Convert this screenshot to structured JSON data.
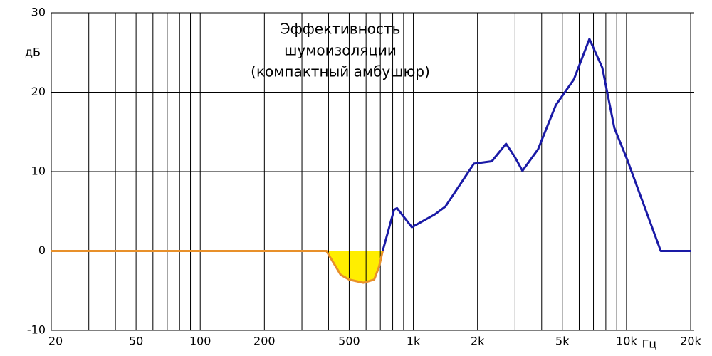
{
  "chart_data": {
    "type": "line",
    "title": [
      "Эффективность",
      "шумоизоляции",
      "(компактный амбушюр)"
    ],
    "y_label": "дБ",
    "x_label": "Гц",
    "log_x": true,
    "grid": true,
    "xlim": [
      20,
      20000
    ],
    "xticks": [
      20,
      50,
      100,
      200,
      500,
      {
        "value": 1000,
        "label": "1k"
      },
      {
        "value": 2000,
        "label": "2k"
      },
      {
        "value": 5000,
        "label": "5k"
      },
      {
        "value": 10000,
        "label": "10k"
      },
      {
        "value": 20000,
        "label": "20k"
      }
    ],
    "x_minor_grid": [
      30,
      40,
      60,
      70,
      80,
      90,
      300,
      400,
      600,
      700,
      800,
      900,
      3000,
      4000,
      6000,
      7000,
      8000,
      9000
    ],
    "ylim": [
      -10,
      30
    ],
    "yticks": [
      -10,
      0,
      10,
      20,
      30
    ],
    "series": [
      {
        "color": "#1a1aa6",
        "x": [
          718,
          812,
          838,
          984,
          1260,
          1414,
          1924,
          2334,
          2722,
          2985,
          3250,
          3846,
          4666,
          5662,
          6700,
          7700,
          8770,
          10080,
          14480,
          20000
        ],
        "values": [
          0,
          5.2,
          5.4,
          3.0,
          4.6,
          5.6,
          11.0,
          11.3,
          13.5,
          11.9,
          10.1,
          12.8,
          18.4,
          21.6,
          26.7,
          23.1,
          15.5,
          11.5,
          0,
          0
        ]
      },
      {
        "color": "#e8902a",
        "fill": "#ffee00",
        "x": [
          20,
          391,
          456,
          500,
          583,
          655,
          690,
          718
        ],
        "values": [
          0,
          0,
          -3.0,
          -3.6,
          -4.0,
          -3.6,
          -2.0,
          0
        ]
      }
    ]
  }
}
